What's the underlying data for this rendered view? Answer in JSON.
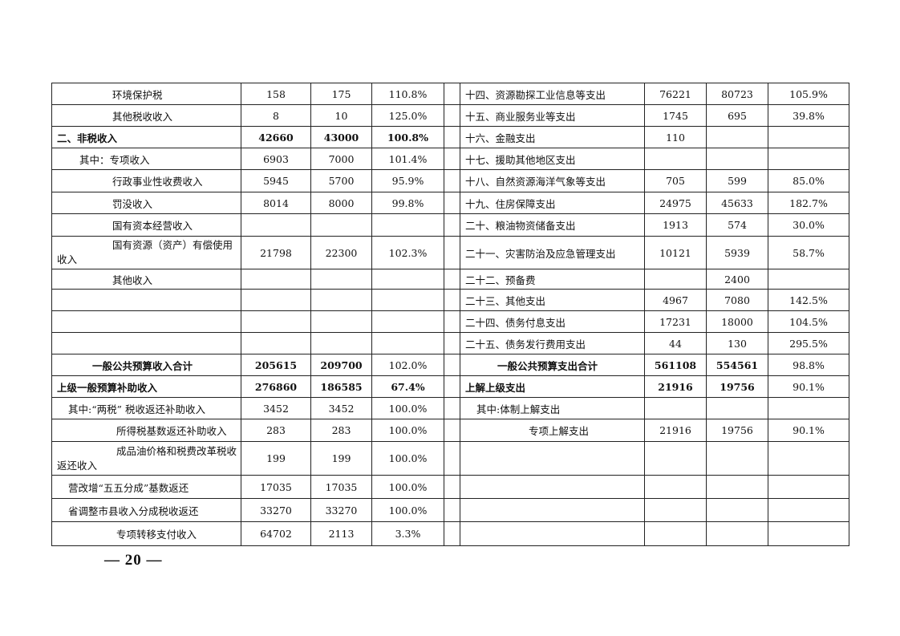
{
  "rows": [
    {
      "left": {
        "label": "环境保护税",
        "v1": "158",
        "v2": "175",
        "pct": "110.8%"
      },
      "right": {
        "label": "十四、资源勘探工业信息等支出",
        "v1": "76221",
        "v2": "80723",
        "pct": "105.9%"
      }
    },
    {
      "left": {
        "label": "其他税收收入",
        "v1": "8",
        "v2": "10",
        "pct": "125.0%"
      },
      "right": {
        "label": "十五、商业服务业等支出",
        "v1": "1745",
        "v2": "695",
        "pct": "39.8%"
      }
    },
    {
      "left": {
        "label": "二、非税收入",
        "v1": "42660",
        "v2": "43000",
        "pct": "100.8%"
      },
      "right": {
        "label": "十六、金融支出",
        "v1": "110",
        "v2": "",
        "pct": ""
      }
    },
    {
      "left": {
        "label": "其中：专项收入",
        "v1": "6903",
        "v2": "7000",
        "pct": "101.4%"
      },
      "right": {
        "label": "十七、援助其他地区支出",
        "v1": "",
        "v2": "",
        "pct": ""
      }
    },
    {
      "left": {
        "label": "行政事业性收费收入",
        "v1": "5945",
        "v2": "5700",
        "pct": "95.9%"
      },
      "right": {
        "label": "十八、自然资源海洋气象等支出",
        "v1": "705",
        "v2": "599",
        "pct": "85.0%"
      }
    },
    {
      "left": {
        "label": "罚没收入",
        "v1": "8014",
        "v2": "8000",
        "pct": "99.8%"
      },
      "right": {
        "label": "十九、住房保障支出",
        "v1": "24975",
        "v2": "45633",
        "pct": "182.7%"
      }
    },
    {
      "left": {
        "label": "国有资本经营收入",
        "v1": "",
        "v2": "",
        "pct": ""
      },
      "right": {
        "label": "二十、粮油物资储备支出",
        "v1": "1913",
        "v2": "574",
        "pct": "30.0%"
      }
    },
    {
      "left": {
        "label": "国有资源（资产）有偿使用收入",
        "v1": "21798",
        "v2": "22300",
        "pct": "102.3%"
      },
      "right": {
        "label": "二十一、灾害防治及应急管理支出",
        "v1": "10121",
        "v2": "5939",
        "pct": "58.7%"
      }
    },
    {
      "left": {
        "label": "其他收入",
        "v1": "",
        "v2": "",
        "pct": ""
      },
      "right": {
        "label": "二十二、预备费",
        "v1": "",
        "v2": "2400",
        "pct": ""
      }
    },
    {
      "left": {
        "label": "",
        "v1": "",
        "v2": "",
        "pct": ""
      },
      "right": {
        "label": "二十三、其他支出",
        "v1": "4967",
        "v2": "7080",
        "pct": "142.5%"
      }
    },
    {
      "left": {
        "label": "",
        "v1": "",
        "v2": "",
        "pct": ""
      },
      "right": {
        "label": "二十四、债务付息支出",
        "v1": "17231",
        "v2": "18000",
        "pct": "104.5%"
      }
    },
    {
      "left": {
        "label": "",
        "v1": "",
        "v2": "",
        "pct": ""
      },
      "right": {
        "label": "二十五、债务发行费用支出",
        "v1": "44",
        "v2": "130",
        "pct": "295.5%"
      }
    },
    {
      "left": {
        "label": "一般公共预算收入合计",
        "v1": "205615",
        "v2": "209700",
        "pct": "102.0%"
      },
      "right": {
        "label": "一般公共预算支出合计",
        "v1": "561108",
        "v2": "554561",
        "pct": "98.8%"
      }
    },
    {
      "left": {
        "label": "上级一般预算补助收入",
        "v1": "276860",
        "v2": "186585",
        "pct": "67.4%"
      },
      "right": {
        "label": "上解上级支出",
        "v1": "21916",
        "v2": "19756",
        "pct": "90.1%"
      }
    },
    {
      "left": {
        "label": "其中:“两税” 税收返还补助收入",
        "v1": "3452",
        "v2": "3452",
        "pct": "100.0%"
      },
      "right": {
        "label": "其中:体制上解支出",
        "v1": "",
        "v2": "",
        "pct": ""
      }
    },
    {
      "left": {
        "label": "所得税基数返还补助收入",
        "v1": "283",
        "v2": "283",
        "pct": "100.0%"
      },
      "right": {
        "label": "专项上解支出",
        "v1": "21916",
        "v2": "19756",
        "pct": "90.1%"
      }
    },
    {
      "left": {
        "label": "成品油价格和税费改革税收返还收入",
        "v1": "199",
        "v2": "199",
        "pct": "100.0%"
      },
      "right": {
        "label": "",
        "v1": "",
        "v2": "",
        "pct": ""
      }
    },
    {
      "left": {
        "label": "营改增“五五分成”基数返还",
        "v1": "17035",
        "v2": "17035",
        "pct": "100.0%"
      },
      "right": {
        "label": "",
        "v1": "",
        "v2": "",
        "pct": ""
      }
    },
    {
      "left": {
        "label": "省调整市县收入分成税收返还",
        "v1": "33270",
        "v2": "33270",
        "pct": "100.0%"
      },
      "right": {
        "label": "",
        "v1": "",
        "v2": "",
        "pct": ""
      }
    },
    {
      "left": {
        "label": "专项转移支付收入",
        "v1": "64702",
        "v2": "2113",
        "pct": "3.3%"
      },
      "right": {
        "label": "",
        "v1": "",
        "v2": "",
        "pct": ""
      }
    }
  ],
  "page_number": "— 20 —"
}
